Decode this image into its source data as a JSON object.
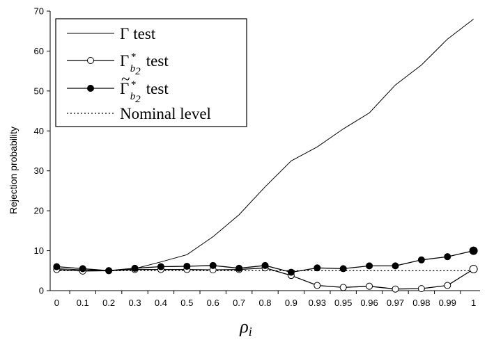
{
  "chart_data": {
    "type": "line",
    "title": "",
    "xlabel": "ρ",
    "xlabel_sub": "i",
    "ylabel": "Rejection probability",
    "ylim": [
      0,
      70
    ],
    "yticks": [
      "0",
      "10",
      "20",
      "30",
      "40",
      "50",
      "60",
      "70"
    ],
    "categories": [
      "0",
      "0.1",
      "0.2",
      "0.3",
      "0.4",
      "0.5",
      "0.6",
      "0.7",
      "0.8",
      "0.9",
      "0.93",
      "0.95",
      "0.96",
      "0.97",
      "0.98",
      "0.99",
      "1"
    ],
    "grid": false,
    "legend_position": "top-left",
    "series": [
      {
        "name": "Γ test",
        "legend_main": "Γ",
        "legend_tail": "test",
        "style": "solid-thin",
        "values": [
          5.5,
          5.2,
          5.0,
          5.5,
          7.2,
          9.0,
          13.5,
          19.0,
          26.0,
          32.5,
          36.0,
          40.5,
          44.5,
          51.5,
          56.5,
          63.0,
          68.0
        ]
      },
      {
        "name": "Γ*b2 test",
        "legend_main": "Γ",
        "legend_sup": "*",
        "legend_sub": "b",
        "legend_subsub": "2",
        "legend_tail": "test",
        "style": "open-circle",
        "values": [
          5.3,
          4.9,
          5.0,
          5.3,
          5.3,
          5.3,
          5.2,
          5.3,
          5.7,
          3.8,
          1.3,
          0.8,
          1.1,
          0.4,
          0.5,
          1.3,
          5.4
        ]
      },
      {
        "name": "Γ̃*b2 test",
        "legend_main": "Γ",
        "legend_tilde": "~",
        "legend_sup": "*",
        "legend_sub": "b",
        "legend_subsub": "2",
        "legend_tail": "test",
        "style": "filled-circle",
        "values": [
          6.0,
          5.5,
          5.0,
          5.6,
          6.0,
          6.1,
          6.3,
          5.6,
          6.3,
          4.6,
          5.7,
          5.5,
          6.2,
          6.2,
          7.7,
          8.5,
          10.0
        ]
      },
      {
        "name": "Nominal level",
        "legend_main": "Nominal level",
        "style": "dotted",
        "values": [
          5,
          5,
          5,
          5,
          5,
          5,
          5,
          5,
          5,
          5,
          5,
          5,
          5,
          5,
          5,
          5,
          5
        ]
      }
    ]
  }
}
